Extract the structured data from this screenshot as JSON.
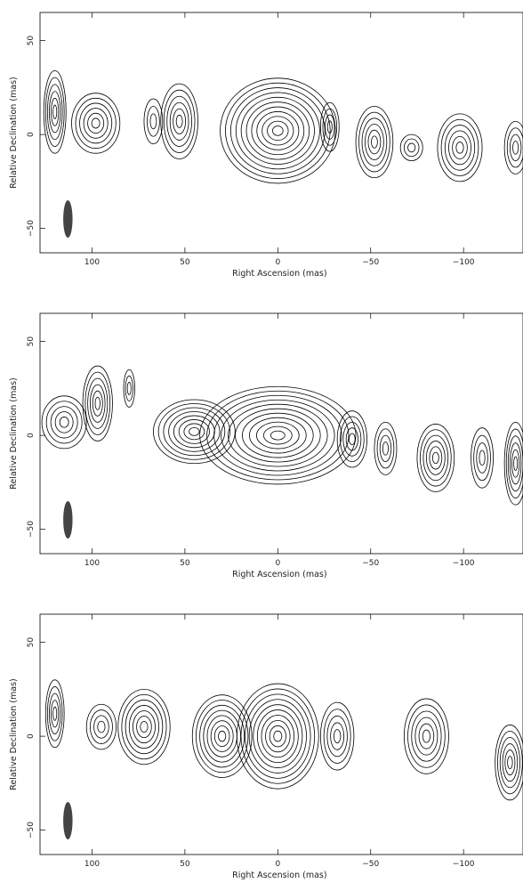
{
  "chart_data": [
    {
      "type": "contour",
      "xlabel": "Right Ascension  (mas)",
      "ylabel": "Relative Declination  (mas)",
      "xlim": [
        128,
        -132
      ],
      "ylim": [
        -63,
        65
      ],
      "xticks": [
        100,
        50,
        0,
        -50,
        -100
      ],
      "yticks": [
        -50,
        0,
        50
      ],
      "beam": {
        "x": 113,
        "y": -45,
        "major_axis_mas": 20,
        "minor_axis_mas": 5,
        "color": "#444444"
      },
      "components": [
        {
          "x": 120,
          "y": 12,
          "rx": 6,
          "ry": 22
        },
        {
          "x": 98,
          "y": 6,
          "rx": 13,
          "ry": 16
        },
        {
          "x": 67,
          "y": 7,
          "rx": 5,
          "ry": 12
        },
        {
          "x": 53,
          "y": 7,
          "rx": 10,
          "ry": 20
        },
        {
          "x": 0,
          "y": 2,
          "rx": 31,
          "ry": 28
        },
        {
          "x": -28,
          "y": 4,
          "rx": 5,
          "ry": 13
        },
        {
          "x": -52,
          "y": -4,
          "rx": 10,
          "ry": 19
        },
        {
          "x": -72,
          "y": -7,
          "rx": 6,
          "ry": 7
        },
        {
          "x": -98,
          "y": -7,
          "rx": 12,
          "ry": 18
        },
        {
          "x": -128,
          "y": -7,
          "rx": 6,
          "ry": 14
        }
      ]
    },
    {
      "type": "contour",
      "xlabel": "Right Ascension  (mas)",
      "ylabel": "Relative Declination  (mas)",
      "xlim": [
        128,
        -132
      ],
      "ylim": [
        -63,
        65
      ],
      "xticks": [
        100,
        50,
        0,
        -50,
        -100
      ],
      "yticks": [
        -50,
        0,
        50
      ],
      "beam": {
        "x": 113,
        "y": -45,
        "major_axis_mas": 20,
        "minor_axis_mas": 5,
        "color": "#444444"
      },
      "components": [
        {
          "x": 115,
          "y": 7,
          "rx": 12,
          "ry": 14
        },
        {
          "x": 97,
          "y": 17,
          "rx": 8,
          "ry": 20
        },
        {
          "x": 80,
          "y": 25,
          "rx": 3,
          "ry": 10
        },
        {
          "x": 45,
          "y": 2,
          "rx": 22,
          "ry": 17
        },
        {
          "x": 0,
          "y": 0,
          "rx": 42,
          "ry": 26
        },
        {
          "x": -40,
          "y": -2,
          "rx": 8,
          "ry": 15
        },
        {
          "x": -58,
          "y": -7,
          "rx": 6,
          "ry": 14
        },
        {
          "x": -85,
          "y": -12,
          "rx": 10,
          "ry": 18
        },
        {
          "x": -110,
          "y": -12,
          "rx": 6,
          "ry": 16
        },
        {
          "x": -128,
          "y": -15,
          "rx": 6,
          "ry": 22
        }
      ]
    },
    {
      "type": "contour",
      "xlabel": "Right Ascension  (mas)",
      "ylabel": "Relative Declination  (mas)",
      "xlim": [
        128,
        -132
      ],
      "ylim": [
        -63,
        65
      ],
      "xticks": [
        100,
        50,
        0,
        -50,
        -100
      ],
      "yticks": [
        -50,
        0,
        50
      ],
      "beam": {
        "x": 113,
        "y": -45,
        "major_axis_mas": 20,
        "minor_axis_mas": 5,
        "color": "#444444"
      },
      "components": [
        {
          "x": 120,
          "y": 12,
          "rx": 5,
          "ry": 18
        },
        {
          "x": 95,
          "y": 5,
          "rx": 8,
          "ry": 12
        },
        {
          "x": 72,
          "y": 5,
          "rx": 14,
          "ry": 20
        },
        {
          "x": 30,
          "y": 0,
          "rx": 16,
          "ry": 22
        },
        {
          "x": 0,
          "y": 0,
          "rx": 22,
          "ry": 28
        },
        {
          "x": -32,
          "y": 0,
          "rx": 9,
          "ry": 18
        },
        {
          "x": -80,
          "y": 0,
          "rx": 12,
          "ry": 20
        },
        {
          "x": -125,
          "y": -14,
          "rx": 8,
          "ry": 20
        }
      ]
    }
  ]
}
